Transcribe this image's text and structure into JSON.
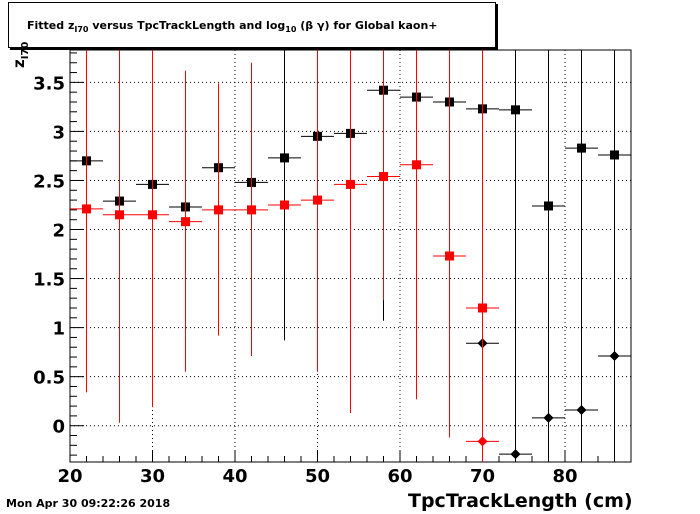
{
  "title": {
    "pre": "Fitted  z",
    "pre_sub": "I70",
    "mid": "  versus TpcTrackLength and log",
    "mid_sub": "10",
    "post": " (β γ) for Global kaon+"
  },
  "footer": "Mon Apr 30 09:22:26 2018",
  "chart_data": {
    "type": "scatter",
    "title": "Fitted z_I70 versus TpcTrackLength and log10 (β γ) for Global kaon+",
    "xlabel": "TpcTrackLength (cm)",
    "ylabel": "z_I70",
    "xlim": [
      20,
      88
    ],
    "ylim": [
      -0.37,
      3.83
    ],
    "x_ticks": [
      20,
      30,
      40,
      50,
      60,
      70,
      80
    ],
    "y_ticks": [
      "0",
      "0.5",
      "1",
      "1.5",
      "2",
      "2.5",
      "3",
      "3.5"
    ],
    "y_tick_values": [
      0,
      0.5,
      1,
      1.5,
      2,
      2.5,
      3,
      3.5
    ],
    "grid": true,
    "series": [
      {
        "color": "#000000",
        "marker": "square",
        "points": [
          {
            "x": 22,
            "y": 2.7,
            "xerr": 2,
            "ylo": 2.7,
            "yhi": 2.7
          },
          {
            "x": 26,
            "y": 2.29,
            "xerr": 2,
            "ylo": 2.29,
            "yhi": 2.29
          },
          {
            "x": 30,
            "y": 2.46,
            "xerr": 2,
            "ylo": 2.46,
            "yhi": 2.46
          },
          {
            "x": 34,
            "y": 2.23,
            "xerr": 2,
            "ylo": 2.23,
            "yhi": 2.23
          },
          {
            "x": 38,
            "y": 2.63,
            "xerr": 2,
            "ylo": 2.63,
            "yhi": 2.63
          },
          {
            "x": 42,
            "y": 2.48,
            "xerr": 2,
            "ylo": 2.48,
            "yhi": 2.48
          },
          {
            "x": 46,
            "y": 2.73,
            "xerr": 2,
            "ylo": 0.87,
            "yhi": 3.83
          },
          {
            "x": 50,
            "y": 2.95,
            "xerr": 2,
            "ylo": 2.95,
            "yhi": 2.95
          },
          {
            "x": 54,
            "y": 2.98,
            "xerr": 2,
            "ylo": 2.98,
            "yhi": 2.98
          },
          {
            "x": 58,
            "y": 3.42,
            "xerr": 2,
            "ylo": 1.07,
            "yhi": 3.83
          },
          {
            "x": 62,
            "y": 3.35,
            "xerr": 2,
            "ylo": 3.35,
            "yhi": 3.35
          },
          {
            "x": 66,
            "y": 3.3,
            "xerr": 2,
            "ylo": 3.3,
            "yhi": 3.3
          },
          {
            "x": 70,
            "y": 3.23,
            "xerr": 2,
            "ylo": 3.23,
            "yhi": 3.23
          },
          {
            "x": 74,
            "y": 3.22,
            "xerr": 2,
            "ylo": -0.37,
            "yhi": 3.83
          },
          {
            "x": 78,
            "y": 2.24,
            "xerr": 2,
            "ylo": -0.37,
            "yhi": 3.83
          },
          {
            "x": 82,
            "y": 2.83,
            "xerr": 2,
            "ylo": -0.37,
            "yhi": 3.83
          },
          {
            "x": 86,
            "y": 2.76,
            "xerr": 2,
            "ylo": -0.37,
            "yhi": 3.83
          }
        ]
      },
      {
        "color": "#ff0000",
        "marker": "square",
        "points": [
          {
            "x": 22,
            "y": 2.21,
            "xerr": 2,
            "ylo": 0.34,
            "yhi": 3.83
          },
          {
            "x": 26,
            "y": 2.15,
            "xerr": 2,
            "ylo": 0.03,
            "yhi": 3.83
          },
          {
            "x": 30,
            "y": 2.15,
            "xerr": 2,
            "ylo": 0.19,
            "yhi": 3.83
          },
          {
            "x": 34,
            "y": 2.08,
            "xerr": 2,
            "ylo": 0.55,
            "yhi": 3.62
          },
          {
            "x": 38,
            "y": 2.2,
            "xerr": 2,
            "ylo": 0.92,
            "yhi": 3.49
          },
          {
            "x": 42,
            "y": 2.2,
            "xerr": 2,
            "ylo": 0.71,
            "yhi": 3.7
          },
          {
            "x": 46,
            "y": 2.25,
            "xerr": 2,
            "ylo": 2.25,
            "yhi": 2.25
          },
          {
            "x": 50,
            "y": 2.3,
            "xerr": 2,
            "ylo": 0.55,
            "yhi": 3.83
          },
          {
            "x": 54,
            "y": 2.46,
            "xerr": 2,
            "ylo": 0.13,
            "yhi": 3.83
          },
          {
            "x": 58,
            "y": 2.54,
            "xerr": 2,
            "ylo": 1.28,
            "yhi": 3.83
          },
          {
            "x": 62,
            "y": 2.66,
            "xerr": 2,
            "ylo": 0.27,
            "yhi": 3.83
          },
          {
            "x": 66,
            "y": 1.73,
            "xerr": 2,
            "ylo": -0.12,
            "yhi": 3.83
          },
          {
            "x": 70,
            "y": 1.2,
            "xerr": 2,
            "ylo": 1.2,
            "yhi": 1.2
          }
        ]
      },
      {
        "color": "#000000",
        "marker": "diamond",
        "points": [
          {
            "x": 70,
            "y": 0.84,
            "xerr": 2,
            "ylo": -0.37,
            "yhi": 3.83
          },
          {
            "x": 74,
            "y": -0.29,
            "xerr": 2,
            "ylo": -0.37,
            "yhi": 3.83
          },
          {
            "x": 78,
            "y": 0.08,
            "xerr": 2,
            "ylo": -0.37,
            "yhi": 3.83
          },
          {
            "x": 82,
            "y": 0.16,
            "xerr": 2,
            "ylo": -0.37,
            "yhi": 3.83
          },
          {
            "x": 86,
            "y": 0.71,
            "xerr": 2,
            "ylo": -0.37,
            "yhi": 3.83
          }
        ]
      },
      {
        "color": "#ff0000",
        "marker": "diamond",
        "points": [
          {
            "x": 70,
            "y": -0.16,
            "xerr": 2,
            "ylo": -0.37,
            "yhi": 3.83
          }
        ]
      }
    ]
  }
}
